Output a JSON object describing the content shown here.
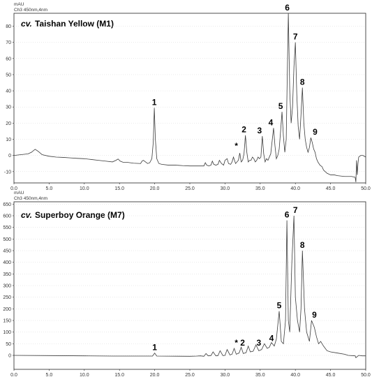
{
  "chart_data": [
    {
      "type": "line",
      "title_italic": "cv.",
      "title": "Taishan Yellow (M1)",
      "unit_label": "mAU",
      "channel_label": "Ch3 450nm,4nm",
      "xlim": [
        0,
        50
      ],
      "ylim": [
        -17,
        88
      ],
      "x_ticks": [
        "0.0",
        "5.0",
        "10.0",
        "15.0",
        "20.0",
        "25.0",
        "30.0",
        "35.0",
        "40.0",
        "45.0",
        "50.0"
      ],
      "y_ticks": [
        "-10",
        "0",
        "10",
        "20",
        "30",
        "40",
        "50",
        "60",
        "70",
        "80"
      ],
      "x": [
        0,
        2,
        2.5,
        3,
        3.3,
        3.6,
        4,
        5,
        6,
        7,
        8,
        9,
        10,
        11,
        12,
        13,
        14,
        14.5,
        14.8,
        15.1,
        15.5,
        16,
        17,
        18,
        18.2,
        18.4,
        18.7,
        19,
        19.3,
        19.6,
        19.8,
        19.95,
        20.1,
        20.3,
        20.6,
        21,
        22,
        23,
        24,
        25,
        26,
        27,
        27.2,
        27.4,
        27.7,
        28,
        28.2,
        28.4,
        28.7,
        29,
        29.2,
        29.5,
        29.8,
        30,
        30.3,
        30.5,
        30.8,
        31,
        31.2,
        31.5,
        31.7,
        31.9,
        32.1,
        32.3,
        32.5,
        32.7,
        32.9,
        33.1,
        33.3,
        33.5,
        33.7,
        33.9,
        34.1,
        34.3,
        34.5,
        34.7,
        34.9,
        35.1,
        35.3,
        35.5,
        35.7,
        35.9,
        36.1,
        36.3,
        36.5,
        36.7,
        36.9,
        37.1,
        37.3,
        37.5,
        37.7,
        37.9,
        38.1,
        38.3,
        38.5,
        38.7,
        38.85,
        39,
        39.2,
        39.4,
        39.6,
        39.8,
        40,
        40.2,
        40.4,
        40.6,
        40.8,
        41,
        41.2,
        41.4,
        41.6,
        41.8,
        42,
        42.2,
        42.4,
        42.6,
        42.8,
        43,
        43.2,
        43.5,
        43.8,
        44,
        44.5,
        45,
        45.5,
        46,
        47,
        48,
        48.5,
        48.6,
        48.7,
        48.8,
        48.9,
        49,
        49.3,
        49.6,
        50
      ],
      "values": [
        0,
        1,
        2,
        3.8,
        3,
        2,
        0.5,
        -0.5,
        -1,
        -1.2,
        -1.5,
        -1.8,
        -2,
        -2.5,
        -3,
        -3.5,
        -4,
        -3,
        -2.2,
        -3.5,
        -4.2,
        -4.2,
        -4.8,
        -5,
        -3.5,
        -3,
        -4,
        -5,
        -4.5,
        -2,
        8,
        29.5,
        10,
        -2,
        -5,
        -5.5,
        -6,
        -6,
        -6.3,
        -6.5,
        -6.5,
        -6.5,
        -4.5,
        -6,
        -6.5,
        -6,
        -3.5,
        -5.5,
        -6,
        -5.5,
        -3,
        -5,
        -6,
        -3,
        -2,
        -5,
        -5.5,
        -4,
        -1,
        -5,
        -4,
        -3,
        1.5,
        -4,
        -3,
        1,
        12.5,
        2,
        -4,
        -3,
        -3,
        -1,
        -2,
        -4,
        -3,
        -1,
        -2,
        -1,
        12,
        1,
        -4,
        -2,
        -3,
        -1,
        1,
        9,
        17,
        6,
        -2,
        0,
        4,
        15,
        27,
        12,
        2,
        10,
        50,
        88,
        40,
        20,
        30,
        55,
        70,
        38,
        18,
        10,
        25,
        42,
        20,
        10,
        5,
        2,
        5,
        11,
        8,
        4,
        2,
        -2,
        -4,
        -6,
        -7,
        -9,
        -11,
        -12,
        -12,
        -12.5,
        -13,
        -13,
        -13.5,
        -16.5,
        -3,
        -12,
        -5,
        -1,
        0,
        0,
        -1
      ]
    },
    {
      "type": "line",
      "title_italic": "cv.",
      "title": "Superboy Orange (M7)",
      "unit_label": "mAU",
      "channel_label": "Ch3 450nm,4nm",
      "xlim": [
        0,
        50
      ],
      "ylim": [
        -60,
        660
      ],
      "x_ticks": [
        "0.0",
        "5.0",
        "10.0",
        "15.0",
        "20.0",
        "25.0",
        "30.0",
        "35.0",
        "40.0",
        "45.0",
        "50.0"
      ],
      "y_ticks": [
        "0",
        "50",
        "100",
        "150",
        "200",
        "250",
        "300",
        "350",
        "400",
        "450",
        "500",
        "550",
        "600",
        "650"
      ],
      "x": [
        0,
        5,
        10,
        14,
        19.7,
        20,
        20.3,
        25,
        26,
        26.5,
        27,
        27.3,
        27.6,
        28,
        28.3,
        28.7,
        29,
        29.3,
        29.7,
        30,
        30.3,
        30.7,
        31,
        31.3,
        31.6,
        32,
        32.3,
        32.6,
        33,
        33.3,
        33.6,
        34,
        34.4,
        34.8,
        35.2,
        35.6,
        36,
        36.3,
        36.6,
        37,
        37.3,
        37.7,
        38,
        38.3,
        38.6,
        38.8,
        39,
        39.2,
        39.5,
        39.8,
        40,
        40.3,
        40.6,
        40.8,
        41,
        41.3,
        41.6,
        42,
        42.3,
        42.7,
        43,
        43.3,
        43.6,
        44,
        44.5,
        45,
        46,
        47,
        47.5,
        48.5,
        48.6,
        48.8,
        49,
        49.5,
        50
      ],
      "values": [
        0,
        -1,
        -2,
        -3,
        -3,
        10,
        -3,
        -4,
        -3,
        -2,
        -4,
        8,
        -2,
        -1,
        15,
        -2,
        -1,
        20,
        -1,
        0,
        25,
        2,
        5,
        30,
        5,
        10,
        35,
        8,
        12,
        40,
        15,
        18,
        45,
        20,
        25,
        50,
        30,
        35,
        55,
        40,
        70,
        190,
        60,
        50,
        150,
        580,
        150,
        100,
        400,
        600,
        250,
        150,
        100,
        200,
        450,
        200,
        100,
        60,
        150,
        120,
        80,
        50,
        60,
        40,
        20,
        15,
        10,
        5,
        0,
        -2,
        -10,
        -5,
        0,
        -2,
        -2
      ]
    }
  ],
  "peaks": {
    "m1": [
      {
        "label": "1",
        "x": 19.95,
        "y": 29.5
      },
      {
        "label": "*",
        "x": 31.6,
        "y": 2.5
      },
      {
        "label": "2",
        "x": 32.7,
        "y": 12.5
      },
      {
        "label": "3",
        "x": 34.9,
        "y": 12
      },
      {
        "label": "4",
        "x": 36.5,
        "y": 17
      },
      {
        "label": "5",
        "x": 37.9,
        "y": 27
      },
      {
        "label": "6",
        "x": 38.85,
        "y": 88
      },
      {
        "label": "7",
        "x": 40.0,
        "y": 70
      },
      {
        "label": "8",
        "x": 41.0,
        "y": 42
      },
      {
        "label": "9",
        "x": 42.8,
        "y": 11
      }
    ],
    "m7": [
      {
        "label": "1",
        "x": 20.0,
        "y": 10
      },
      {
        "label": "*",
        "x": 31.6,
        "y": 30
      },
      {
        "label": "2",
        "x": 32.5,
        "y": 30
      },
      {
        "label": "3",
        "x": 34.8,
        "y": 30
      },
      {
        "label": "4",
        "x": 36.6,
        "y": 50
      },
      {
        "label": "5",
        "x": 37.7,
        "y": 190
      },
      {
        "label": "6",
        "x": 38.8,
        "y": 580
      },
      {
        "label": "7",
        "x": 40.0,
        "y": 600
      },
      {
        "label": "8",
        "x": 41.0,
        "y": 450
      },
      {
        "label": "9",
        "x": 42.7,
        "y": 150
      }
    ]
  }
}
